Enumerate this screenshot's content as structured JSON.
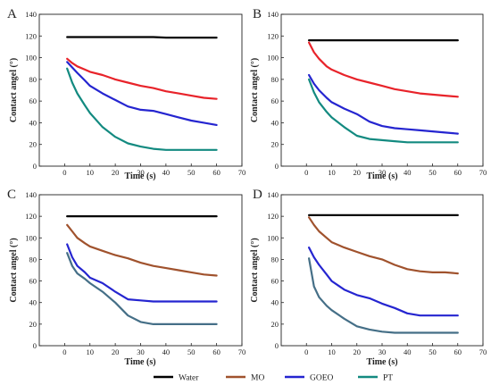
{
  "chart_data": [
    {
      "panel": "A",
      "type": "line",
      "xlabel": "Time (s)",
      "ylabel": "Contact angel (°)",
      "xlim": [
        -10,
        70
      ],
      "ylim": [
        0,
        140
      ],
      "xticks": [
        0,
        10,
        20,
        30,
        40,
        50,
        60,
        70
      ],
      "yticks": [
        0,
        20,
        40,
        60,
        80,
        100,
        120,
        140
      ],
      "x": [
        1,
        3,
        5,
        8,
        10,
        15,
        20,
        25,
        30,
        35,
        40,
        45,
        50,
        55,
        60
      ],
      "series": [
        {
          "name": "Water",
          "color": "#000000",
          "values": [
            119,
            119,
            119,
            119,
            119,
            119,
            119,
            119,
            119,
            119,
            118.5,
            118.5,
            118.5,
            118.5,
            118.5
          ]
        },
        {
          "name": "MO",
          "color": "#e8232a",
          "values": [
            99,
            95,
            92,
            89,
            87,
            84,
            80,
            77,
            74,
            72,
            69,
            67,
            65,
            63,
            62
          ]
        },
        {
          "name": "GOEO",
          "color": "#2525d0",
          "values": [
            96,
            91,
            86,
            79,
            74,
            67,
            61,
            55,
            52,
            51,
            48,
            45,
            42,
            40,
            38
          ]
        },
        {
          "name": "PT",
          "color": "#138a80",
          "values": [
            90,
            77,
            67,
            56,
            49,
            36,
            27,
            21,
            18,
            16,
            15,
            15,
            15,
            15,
            15
          ]
        }
      ]
    },
    {
      "panel": "B",
      "type": "line",
      "xlabel": "Time (s)",
      "ylabel": "Contact angel (°)",
      "xlim": [
        -10,
        70
      ],
      "ylim": [
        0,
        140
      ],
      "xticks": [
        0,
        10,
        20,
        30,
        40,
        50,
        60,
        70
      ],
      "yticks": [
        0,
        20,
        40,
        60,
        80,
        100,
        120,
        140
      ],
      "x": [
        1,
        3,
        5,
        8,
        10,
        15,
        20,
        25,
        30,
        35,
        40,
        45,
        50,
        55,
        60
      ],
      "series": [
        {
          "name": "Water",
          "color": "#000000",
          "values": [
            116,
            116,
            116,
            116,
            116,
            116,
            116,
            116,
            116,
            116,
            116,
            116,
            116,
            116,
            116
          ]
        },
        {
          "name": "MO",
          "color": "#e8232a",
          "values": [
            114,
            105,
            99,
            92,
            89,
            84,
            80,
            77,
            74,
            71,
            69,
            67,
            66,
            65,
            64
          ]
        },
        {
          "name": "GOEO",
          "color": "#2525d0",
          "values": [
            84,
            76,
            70,
            63,
            59,
            53,
            48,
            41,
            37,
            35,
            34,
            33,
            32,
            31,
            30
          ]
        },
        {
          "name": "PT",
          "color": "#138a80",
          "values": [
            80,
            68,
            59,
            50,
            45,
            36,
            28,
            25,
            24,
            23,
            22,
            22,
            22,
            22,
            22
          ]
        }
      ]
    },
    {
      "panel": "C",
      "type": "line",
      "xlabel": "Time (s)",
      "ylabel": "Contact angel (°)",
      "xlim": [
        -10,
        70
      ],
      "ylim": [
        0,
        140
      ],
      "xticks": [
        0,
        10,
        20,
        30,
        40,
        50,
        60,
        70
      ],
      "yticks": [
        0,
        20,
        40,
        60,
        80,
        100,
        120,
        140
      ],
      "x": [
        1,
        3,
        5,
        8,
        10,
        15,
        20,
        25,
        30,
        35,
        40,
        45,
        50,
        55,
        60
      ],
      "series": [
        {
          "name": "Water",
          "color": "#000000",
          "values": [
            120,
            120,
            120,
            120,
            120,
            120,
            120,
            120,
            120,
            120,
            120,
            120,
            120,
            120,
            120
          ]
        },
        {
          "name": "MO",
          "color": "#a0522d",
          "values": [
            112,
            106,
            100,
            95,
            92,
            88,
            84,
            81,
            77,
            74,
            72,
            70,
            68,
            66,
            65
          ]
        },
        {
          "name": "GOEO",
          "color": "#2525d0",
          "values": [
            94,
            82,
            74,
            68,
            63,
            58,
            50,
            43,
            42,
            41,
            41,
            41,
            41,
            41,
            41
          ]
        },
        {
          "name": "PT",
          "color": "#456f87",
          "values": [
            86,
            74,
            67,
            62,
            58,
            50,
            40,
            28,
            22,
            20,
            20,
            20,
            20,
            20,
            20
          ]
        }
      ]
    },
    {
      "panel": "D",
      "type": "line",
      "xlabel": "Time (s)",
      "ylabel": "Contact angel (°)",
      "xlim": [
        -10,
        70
      ],
      "ylim": [
        0,
        140
      ],
      "xticks": [
        0,
        10,
        20,
        30,
        40,
        50,
        60,
        70
      ],
      "yticks": [
        0,
        20,
        40,
        60,
        80,
        100,
        120,
        140
      ],
      "x": [
        1,
        3,
        5,
        8,
        10,
        15,
        20,
        25,
        30,
        35,
        40,
        45,
        50,
        55,
        60
      ],
      "series": [
        {
          "name": "Water",
          "color": "#000000",
          "values": [
            121,
            121,
            121,
            121,
            121,
            121,
            121,
            121,
            121,
            121,
            121,
            121,
            121,
            121,
            121
          ]
        },
        {
          "name": "MO",
          "color": "#a0522d",
          "values": [
            119,
            112,
            106,
            100,
            96,
            91,
            87,
            83,
            80,
            75,
            71,
            69,
            68,
            68,
            67
          ]
        },
        {
          "name": "GOEO",
          "color": "#2525d0",
          "values": [
            91,
            82,
            75,
            66,
            60,
            52,
            47,
            44,
            39,
            35,
            30,
            28,
            28,
            28,
            28
          ]
        },
        {
          "name": "PT",
          "color": "#456f87",
          "values": [
            81,
            55,
            45,
            37,
            33,
            25,
            18,
            15,
            13,
            12,
            12,
            12,
            12,
            12,
            12
          ]
        }
      ]
    }
  ],
  "legend": [
    {
      "name": "Water",
      "color": "#000000"
    },
    {
      "name": "MO",
      "color": "#a0522d"
    },
    {
      "name": "GOEO",
      "color": "#2525d0"
    },
    {
      "name": "PT",
      "color": "#138a80"
    }
  ]
}
